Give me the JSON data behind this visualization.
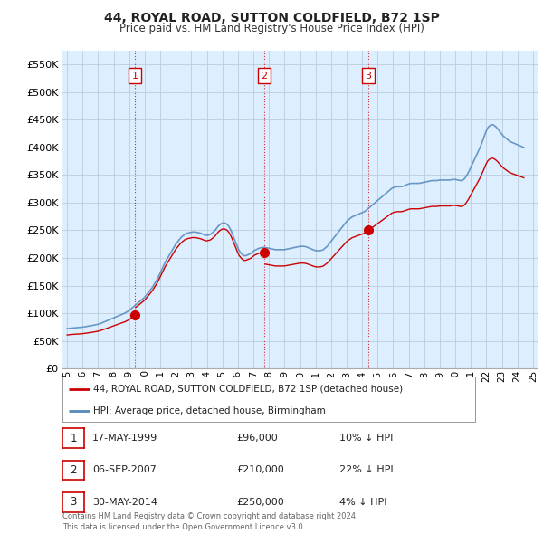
{
  "title": "44, ROYAL ROAD, SUTTON COLDFIELD, B72 1SP",
  "subtitle": "Price paid vs. HM Land Registry's House Price Index (HPI)",
  "ylabel_ticks": [
    "£0",
    "£50K",
    "£100K",
    "£150K",
    "£200K",
    "£250K",
    "£300K",
    "£350K",
    "£400K",
    "£450K",
    "£500K",
    "£550K"
  ],
  "ytick_vals": [
    0,
    50000,
    100000,
    150000,
    200000,
    250000,
    300000,
    350000,
    400000,
    450000,
    500000,
    550000
  ],
  "ylim": [
    0,
    575000
  ],
  "xlim_start": 1994.7,
  "xlim_end": 2025.3,
  "sale_points": [
    {
      "label": "1",
      "date_str": "17-MAY-1999",
      "year": 1999.37,
      "price": 96000
    },
    {
      "label": "2",
      "date_str": "06-SEP-2007",
      "year": 2007.68,
      "price": 210000
    },
    {
      "label": "3",
      "date_str": "30-MAY-2014",
      "year": 2014.41,
      "price": 250000
    }
  ],
  "legend_line1": "44, ROYAL ROAD, SUTTON COLDFIELD, B72 1SP (detached house)",
  "legend_line2": "HPI: Average price, detached house, Birmingham",
  "table_rows": [
    {
      "num": "1",
      "date": "17-MAY-1999",
      "price": "£96,000",
      "hpi": "10% ↓ HPI"
    },
    {
      "num": "2",
      "date": "06-SEP-2007",
      "price": "£210,000",
      "hpi": "22% ↓ HPI"
    },
    {
      "num": "3",
      "date": "30-MAY-2014",
      "price": "£250,000",
      "hpi": "4% ↓ HPI"
    }
  ],
  "footer": "Contains HM Land Registry data © Crown copyright and database right 2024.\nThis data is licensed under the Open Government Licence v3.0.",
  "red_color": "#cc0000",
  "blue_color": "#5588bb",
  "chart_bg": "#ddeeff",
  "bg_color": "#ffffff",
  "grid_color": "#bbccdd",
  "hpi_data_monthly": {
    "start_year": 1995.0,
    "step": 0.08333,
    "values": [
      72000,
      72200,
      72500,
      72800,
      73100,
      73300,
      73500,
      73700,
      73900,
      74100,
      74300,
      74500,
      74800,
      75100,
      75500,
      75900,
      76300,
      76700,
      77100,
      77500,
      78000,
      78500,
      79000,
      79500,
      80000,
      80800,
      81600,
      82500,
      83500,
      84500,
      85500,
      86500,
      87500,
      88500,
      89500,
      90500,
      91500,
      92500,
      93500,
      94500,
      95500,
      96500,
      97500,
      98500,
      99500,
      100500,
      102000,
      103500,
      105000,
      107000,
      109000,
      111000,
      113000,
      115000,
      117000,
      119000,
      121000,
      123000,
      125000,
      127000,
      129000,
      132000,
      135000,
      138000,
      141000,
      144000,
      147000,
      151000,
      155000,
      159000,
      163000,
      168000,
      173000,
      178000,
      183000,
      188000,
      193000,
      197000,
      201000,
      205000,
      209000,
      213000,
      217000,
      221000,
      225000,
      228000,
      231000,
      234000,
      237000,
      239000,
      241000,
      243000,
      244000,
      245000,
      245500,
      246000,
      246500,
      247000,
      247000,
      247000,
      246500,
      246000,
      245500,
      245000,
      244000,
      243000,
      242000,
      241000,
      241000,
      241500,
      242000,
      243000,
      245000,
      247000,
      249000,
      252000,
      255000,
      258000,
      260000,
      262000,
      263000,
      263500,
      263000,
      262000,
      260000,
      257000,
      253000,
      248000,
      242000,
      236000,
      230000,
      224000,
      218000,
      213000,
      210000,
      207000,
      205000,
      204000,
      204000,
      205000,
      206000,
      207000,
      208000,
      210000,
      212000,
      214000,
      215000,
      216000,
      217000,
      218000,
      218500,
      219000,
      219000,
      219000,
      218500,
      218000,
      217500,
      217000,
      216500,
      216000,
      215500,
      215000,
      215000,
      215000,
      215000,
      215000,
      215000,
      215000,
      215000,
      215500,
      216000,
      216500,
      217000,
      217500,
      218000,
      218500,
      219000,
      219500,
      220000,
      220500,
      221000,
      221000,
      221000,
      221000,
      220500,
      220000,
      219000,
      218000,
      217000,
      216000,
      215000,
      214000,
      213500,
      213000,
      213000,
      213000,
      213500,
      214000,
      215000,
      217000,
      219000,
      221000,
      224000,
      227000,
      230000,
      233000,
      236000,
      239000,
      242000,
      245000,
      248000,
      251000,
      254000,
      257000,
      260000,
      263000,
      266000,
      268000,
      270000,
      272000,
      274000,
      275000,
      276000,
      277000,
      278000,
      279000,
      280000,
      281000,
      282000,
      283000,
      284000,
      286000,
      288000,
      290000,
      292000,
      294000,
      296000,
      298000,
      300000,
      302000,
      304000,
      306000,
      308000,
      310000,
      312000,
      314000,
      316000,
      318000,
      320000,
      322000,
      324000,
      326000,
      327000,
      328000,
      328500,
      329000,
      329000,
      329000,
      329000,
      329500,
      330000,
      331000,
      332000,
      333000,
      334000,
      334500,
      335000,
      335000,
      335000,
      335000,
      335000,
      335000,
      335000,
      335500,
      336000,
      336500,
      337000,
      337500,
      338000,
      338500,
      339000,
      339500,
      340000,
      340000,
      340000,
      340000,
      340000,
      340500,
      341000,
      341000,
      341000,
      341000,
      341000,
      341000,
      341000,
      341000,
      341000,
      341500,
      342000,
      342000,
      342000,
      341500,
      341000,
      340500,
      340000,
      340000,
      341000,
      343000,
      346000,
      350000,
      354000,
      359000,
      364000,
      369000,
      374000,
      379000,
      384000,
      389000,
      394000,
      399000,
      405000,
      411000,
      417000,
      424000,
      430000,
      435000,
      438000,
      440000,
      441000,
      441000,
      440000,
      438000,
      436000,
      433000,
      430000,
      427000,
      424000,
      421000,
      419000,
      417000,
      415000,
      413000,
      411000,
      410000,
      409000,
      408000,
      407000,
      406000,
      405000,
      404000,
      403000,
      402000,
      401000,
      400000
    ]
  }
}
